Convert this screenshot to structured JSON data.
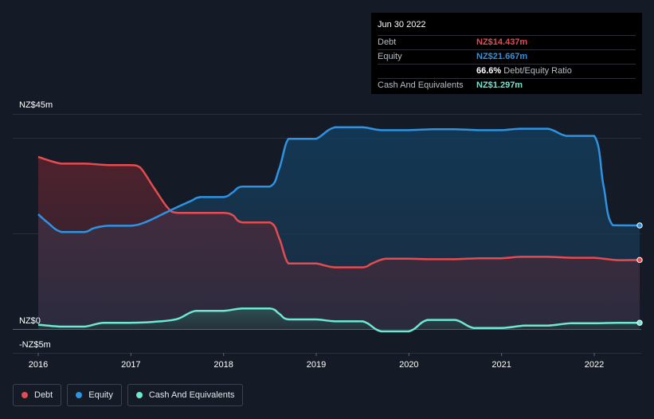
{
  "chart_data": {
    "type": "area",
    "ylim": [
      -5,
      45
    ],
    "y_tick_labels": [
      {
        "value": 45,
        "label": "NZ$45m"
      },
      {
        "value": 0,
        "label": "NZ$0"
      },
      {
        "value": -5,
        "label": "-NZ$5m"
      }
    ],
    "x_tick_labels": [
      "2016",
      "2017",
      "2018",
      "2019",
      "2020",
      "2021",
      "2022"
    ],
    "xlim": [
      2015.72,
      2022.49
    ],
    "series": [
      {
        "name": "Debt",
        "color": "#e64b4f",
        "points": [
          [
            2016.0,
            36.0
          ],
          [
            2016.25,
            34.6
          ],
          [
            2016.5,
            34.6
          ],
          [
            2016.75,
            34.3
          ],
          [
            2017.0,
            34.3
          ],
          [
            2017.1,
            33.8
          ],
          [
            2017.25,
            29.5
          ],
          [
            2017.4,
            25.3
          ],
          [
            2017.5,
            24.3
          ],
          [
            2017.75,
            24.3
          ],
          [
            2018.0,
            24.3
          ],
          [
            2018.1,
            23.8
          ],
          [
            2018.2,
            22.3
          ],
          [
            2018.5,
            22.3
          ],
          [
            2018.6,
            19.0
          ],
          [
            2018.7,
            13.7
          ],
          [
            2018.85,
            13.7
          ],
          [
            2019.0,
            13.7
          ],
          [
            2019.2,
            12.9
          ],
          [
            2019.5,
            12.9
          ],
          [
            2019.6,
            13.7
          ],
          [
            2019.75,
            14.7
          ],
          [
            2020.0,
            14.7
          ],
          [
            2020.25,
            14.6
          ],
          [
            2020.5,
            14.6
          ],
          [
            2020.75,
            14.8
          ],
          [
            2021.0,
            14.8
          ],
          [
            2021.2,
            15.1
          ],
          [
            2021.5,
            15.1
          ],
          [
            2021.75,
            14.9
          ],
          [
            2022.0,
            14.9
          ],
          [
            2022.25,
            14.4
          ],
          [
            2022.49,
            14.437
          ]
        ]
      },
      {
        "name": "Equity",
        "color": "#2e93e3",
        "points": [
          [
            2016.0,
            24.0
          ],
          [
            2016.1,
            22.3
          ],
          [
            2016.25,
            20.3
          ],
          [
            2016.5,
            20.3
          ],
          [
            2016.6,
            21.1
          ],
          [
            2016.75,
            21.6
          ],
          [
            2017.0,
            21.6
          ],
          [
            2017.15,
            22.3
          ],
          [
            2017.35,
            24.1
          ],
          [
            2017.5,
            25.5
          ],
          [
            2017.65,
            26.8
          ],
          [
            2017.75,
            27.6
          ],
          [
            2018.0,
            27.6
          ],
          [
            2018.1,
            28.6
          ],
          [
            2018.2,
            29.8
          ],
          [
            2018.5,
            29.8
          ],
          [
            2018.6,
            33.5
          ],
          [
            2018.7,
            39.8
          ],
          [
            2018.85,
            39.8
          ],
          [
            2019.0,
            39.8
          ],
          [
            2019.2,
            42.2
          ],
          [
            2019.5,
            42.2
          ],
          [
            2019.7,
            41.6
          ],
          [
            2020.0,
            41.6
          ],
          [
            2020.25,
            41.8
          ],
          [
            2020.5,
            41.8
          ],
          [
            2020.75,
            41.6
          ],
          [
            2021.0,
            41.6
          ],
          [
            2021.2,
            41.9
          ],
          [
            2021.5,
            41.9
          ],
          [
            2021.7,
            40.4
          ],
          [
            2022.0,
            40.4
          ],
          [
            2022.1,
            30.0
          ],
          [
            2022.2,
            21.7
          ],
          [
            2022.49,
            21.667
          ]
        ]
      },
      {
        "name": "Cash And Equivalents",
        "color": "#6ee7d3",
        "points": [
          [
            2016.0,
            0.9
          ],
          [
            2016.25,
            0.5
          ],
          [
            2016.5,
            0.5
          ],
          [
            2016.7,
            1.3
          ],
          [
            2017.0,
            1.3
          ],
          [
            2017.25,
            1.5
          ],
          [
            2017.5,
            2.1
          ],
          [
            2017.7,
            3.8
          ],
          [
            2018.0,
            3.8
          ],
          [
            2018.2,
            4.3
          ],
          [
            2018.5,
            4.3
          ],
          [
            2018.6,
            3.2
          ],
          [
            2018.7,
            2.0
          ],
          [
            2019.0,
            2.0
          ],
          [
            2019.2,
            1.6
          ],
          [
            2019.5,
            1.6
          ],
          [
            2019.7,
            -0.5
          ],
          [
            2020.0,
            -0.5
          ],
          [
            2020.2,
            1.9
          ],
          [
            2020.5,
            1.9
          ],
          [
            2020.7,
            0.2
          ],
          [
            2021.0,
            0.2
          ],
          [
            2021.25,
            0.7
          ],
          [
            2021.5,
            0.7
          ],
          [
            2021.75,
            1.2
          ],
          [
            2022.0,
            1.2
          ],
          [
            2022.25,
            1.3
          ],
          [
            2022.49,
            1.297
          ]
        ]
      }
    ],
    "legend": [
      "Debt",
      "Equity",
      "Cash And Equivalents"
    ],
    "legend_position": "bottom-left",
    "grid": true
  },
  "tooltip": {
    "date": "Jun 30 2022",
    "rows": [
      {
        "label": "Debt",
        "value": "NZ$14.437m",
        "color": "#e64b4f"
      },
      {
        "label": "Equity",
        "value": "NZ$21.667m",
        "color": "#2e93e3"
      },
      {
        "label": "",
        "value": "66.6%",
        "sub": "Debt/Equity Ratio",
        "color": "#ffffff"
      },
      {
        "label": "Cash And Equivalents",
        "value": "NZ$1.297m",
        "color": "#6ee7d3"
      }
    ]
  }
}
